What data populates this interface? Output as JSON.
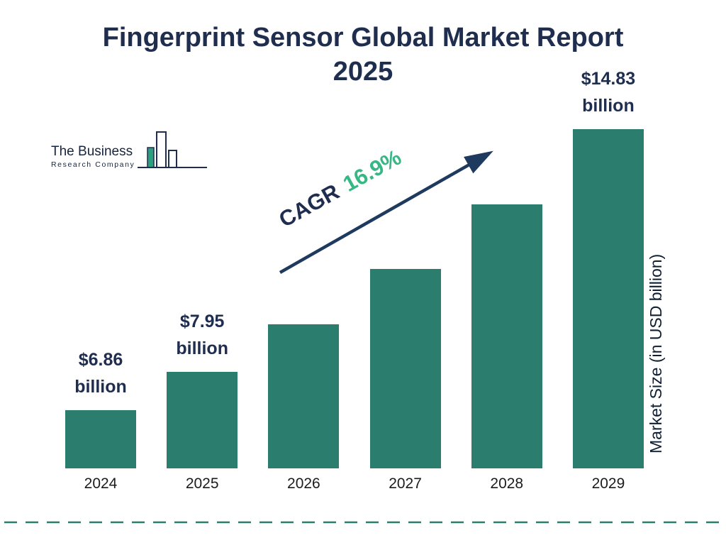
{
  "title": {
    "line1": "Fingerprint Sensor Global Market Report",
    "line2": "2025"
  },
  "logo": {
    "line1": "The Business",
    "line2": "Research Company"
  },
  "cagr": {
    "label": "CAGR",
    "value": "16.9%"
  },
  "y_axis_label": "Market Size (in USD billion)",
  "colors": {
    "bar": "#2b7d6d",
    "navy": "#1f2e4e",
    "green": "#36b784",
    "arrow": "#1e3a5f",
    "dashed_line": "#2b7d6d"
  },
  "chart_data": {
    "type": "bar",
    "title": "Fingerprint Sensor Global Market Report 2025",
    "categories": [
      "2024",
      "2025",
      "2026",
      "2027",
      "2028",
      "2029"
    ],
    "values": [
      6.86,
      7.95,
      9.29,
      10.86,
      12.7,
      14.83
    ],
    "value_labels": [
      "$6.86\nbillion",
      "$7.95\nbillion",
      "",
      "",
      "",
      "$14.83\nbillion"
    ],
    "xlabel": "",
    "ylabel": "Market Size (in USD billion)",
    "cagr_annotation": "CAGR 16.9%",
    "bar_color": "#2b7d6d",
    "ylim": [
      0,
      16
    ],
    "grid": false,
    "legend_position": "none"
  }
}
